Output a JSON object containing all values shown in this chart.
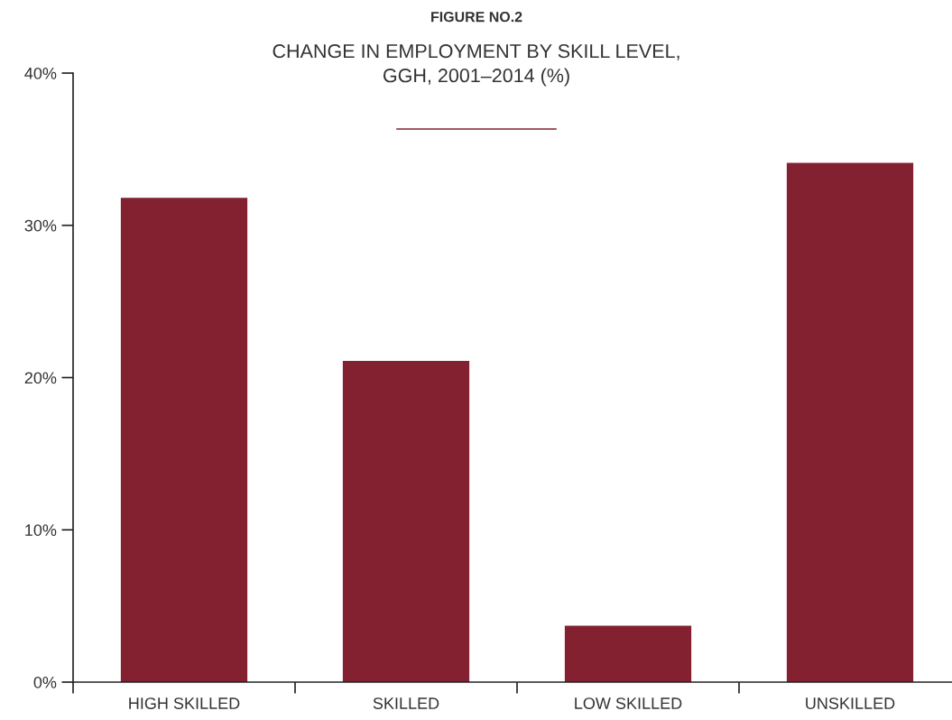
{
  "chart_data": {
    "type": "bar",
    "title": "FIGURE NO.2",
    "subtitle": "CHANGE IN EMPLOYMENT BY SKILL LEVEL,\nGGH, 2001–2014 (%)",
    "categories": [
      "HIGH SKILLED",
      "SKILLED",
      "LOW SKILLED",
      "UNSKILLED"
    ],
    "values": [
      31.8,
      21.1,
      3.7,
      34.1
    ],
    "color": "#832131",
    "ylim": [
      0,
      40
    ],
    "yticks": [
      {
        "value": 0,
        "label": "0%"
      },
      {
        "value": 10,
        "label": "10%"
      },
      {
        "value": 20,
        "label": "20%"
      },
      {
        "value": 30,
        "label": "30%"
      },
      {
        "value": 40,
        "label": "40%"
      }
    ],
    "grid": false,
    "legend": false
  }
}
